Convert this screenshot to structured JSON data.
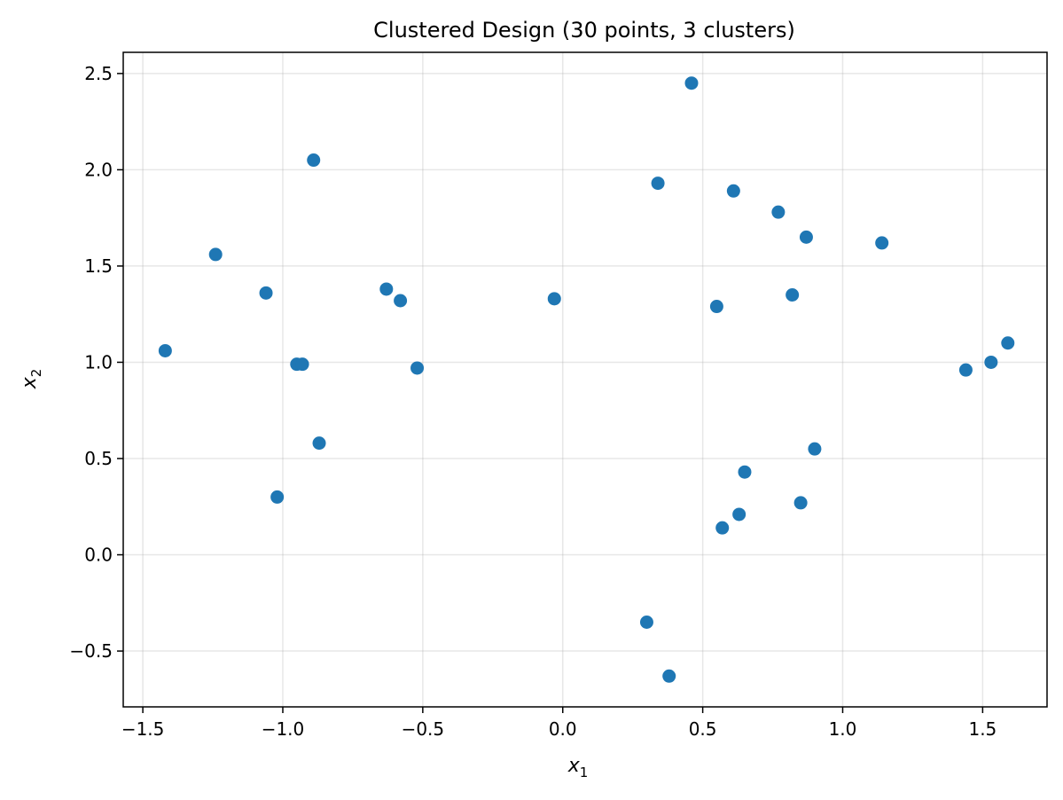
{
  "chart_data": {
    "type": "scatter",
    "title": "Clustered Design (30 points, 3 clusters)",
    "xlabel": "x",
    "xlabel_sub": "1",
    "ylabel": "x",
    "ylabel_sub": "2",
    "xlim": [
      -1.57,
      1.73
    ],
    "ylim": [
      -0.79,
      2.61
    ],
    "xticks": [
      -1.5,
      -1.0,
      -0.5,
      0.0,
      0.5,
      1.0,
      1.5
    ],
    "xtick_labels": [
      "−1.5",
      "−1.0",
      "−0.5",
      "0.0",
      "0.5",
      "1.0",
      "1.5"
    ],
    "yticks": [
      -0.5,
      0.0,
      0.5,
      1.0,
      1.5,
      2.0,
      2.5
    ],
    "ytick_labels": [
      "−0.5",
      "0.0",
      "0.5",
      "1.0",
      "1.5",
      "2.0",
      "2.5"
    ],
    "grid": true,
    "marker_color": "#1f77b4",
    "points": [
      {
        "x": -1.42,
        "y": 1.06
      },
      {
        "x": -1.24,
        "y": 1.56
      },
      {
        "x": -1.06,
        "y": 1.36
      },
      {
        "x": -1.02,
        "y": 0.3
      },
      {
        "x": -0.95,
        "y": 0.99
      },
      {
        "x": -0.93,
        "y": 0.99
      },
      {
        "x": -0.89,
        "y": 2.05
      },
      {
        "x": -0.87,
        "y": 0.58
      },
      {
        "x": -0.63,
        "y": 1.38
      },
      {
        "x": -0.58,
        "y": 1.32
      },
      {
        "x": -0.52,
        "y": 0.97
      },
      {
        "x": -0.03,
        "y": 1.33
      },
      {
        "x": 0.3,
        "y": -0.35
      },
      {
        "x": 0.34,
        "y": 1.93
      },
      {
        "x": 0.38,
        "y": -0.63
      },
      {
        "x": 0.46,
        "y": 2.45
      },
      {
        "x": 0.55,
        "y": 1.29
      },
      {
        "x": 0.57,
        "y": 0.14
      },
      {
        "x": 0.61,
        "y": 1.89
      },
      {
        "x": 0.63,
        "y": 0.21
      },
      {
        "x": 0.65,
        "y": 0.43
      },
      {
        "x": 0.77,
        "y": 1.78
      },
      {
        "x": 0.82,
        "y": 1.35
      },
      {
        "x": 0.85,
        "y": 0.27
      },
      {
        "x": 0.87,
        "y": 1.65
      },
      {
        "x": 0.9,
        "y": 0.55
      },
      {
        "x": 1.14,
        "y": 1.62
      },
      {
        "x": 1.44,
        "y": 0.96
      },
      {
        "x": 1.53,
        "y": 1.0
      },
      {
        "x": 1.59,
        "y": 1.1
      }
    ]
  }
}
